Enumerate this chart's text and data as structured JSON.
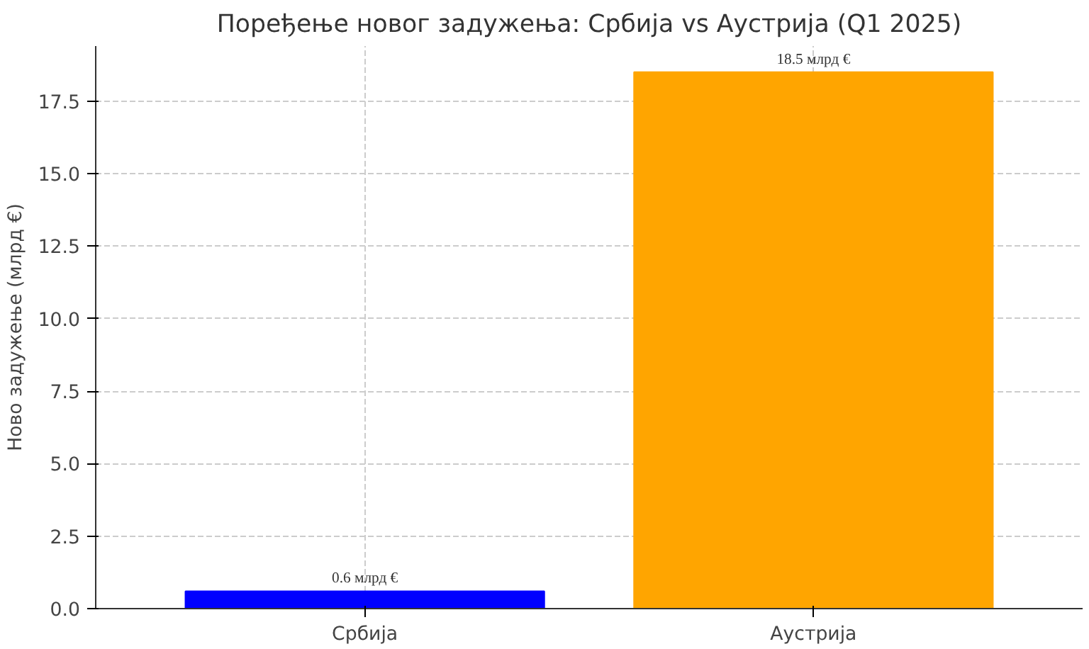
{
  "chart_data": {
    "type": "bar",
    "title": "Поређење новог задужења: Србија vs Аустрија (Q1 2025)",
    "ylabel": "Ново задужење (млрд €)",
    "categories": [
      "Србија",
      "Аустрија"
    ],
    "values": [
      0.6,
      18.5
    ],
    "colors": [
      "#0000ff",
      "#ffa500"
    ],
    "value_labels": [
      "0.6 млрд €",
      "18.5 млрд €"
    ],
    "ylim": [
      0,
      19.4
    ],
    "yticks": [
      {
        "value": 0,
        "label": "0.0"
      },
      {
        "value": 2.5,
        "label": "2.5"
      },
      {
        "value": 5,
        "label": "5.0"
      },
      {
        "value": 7.5,
        "label": "7.5"
      },
      {
        "value": 10,
        "label": "10.0"
      },
      {
        "value": 12.5,
        "label": "12.5"
      },
      {
        "value": 15,
        "label": "15.0"
      },
      {
        "value": 17.5,
        "label": "17.5"
      }
    ],
    "grid": true
  }
}
